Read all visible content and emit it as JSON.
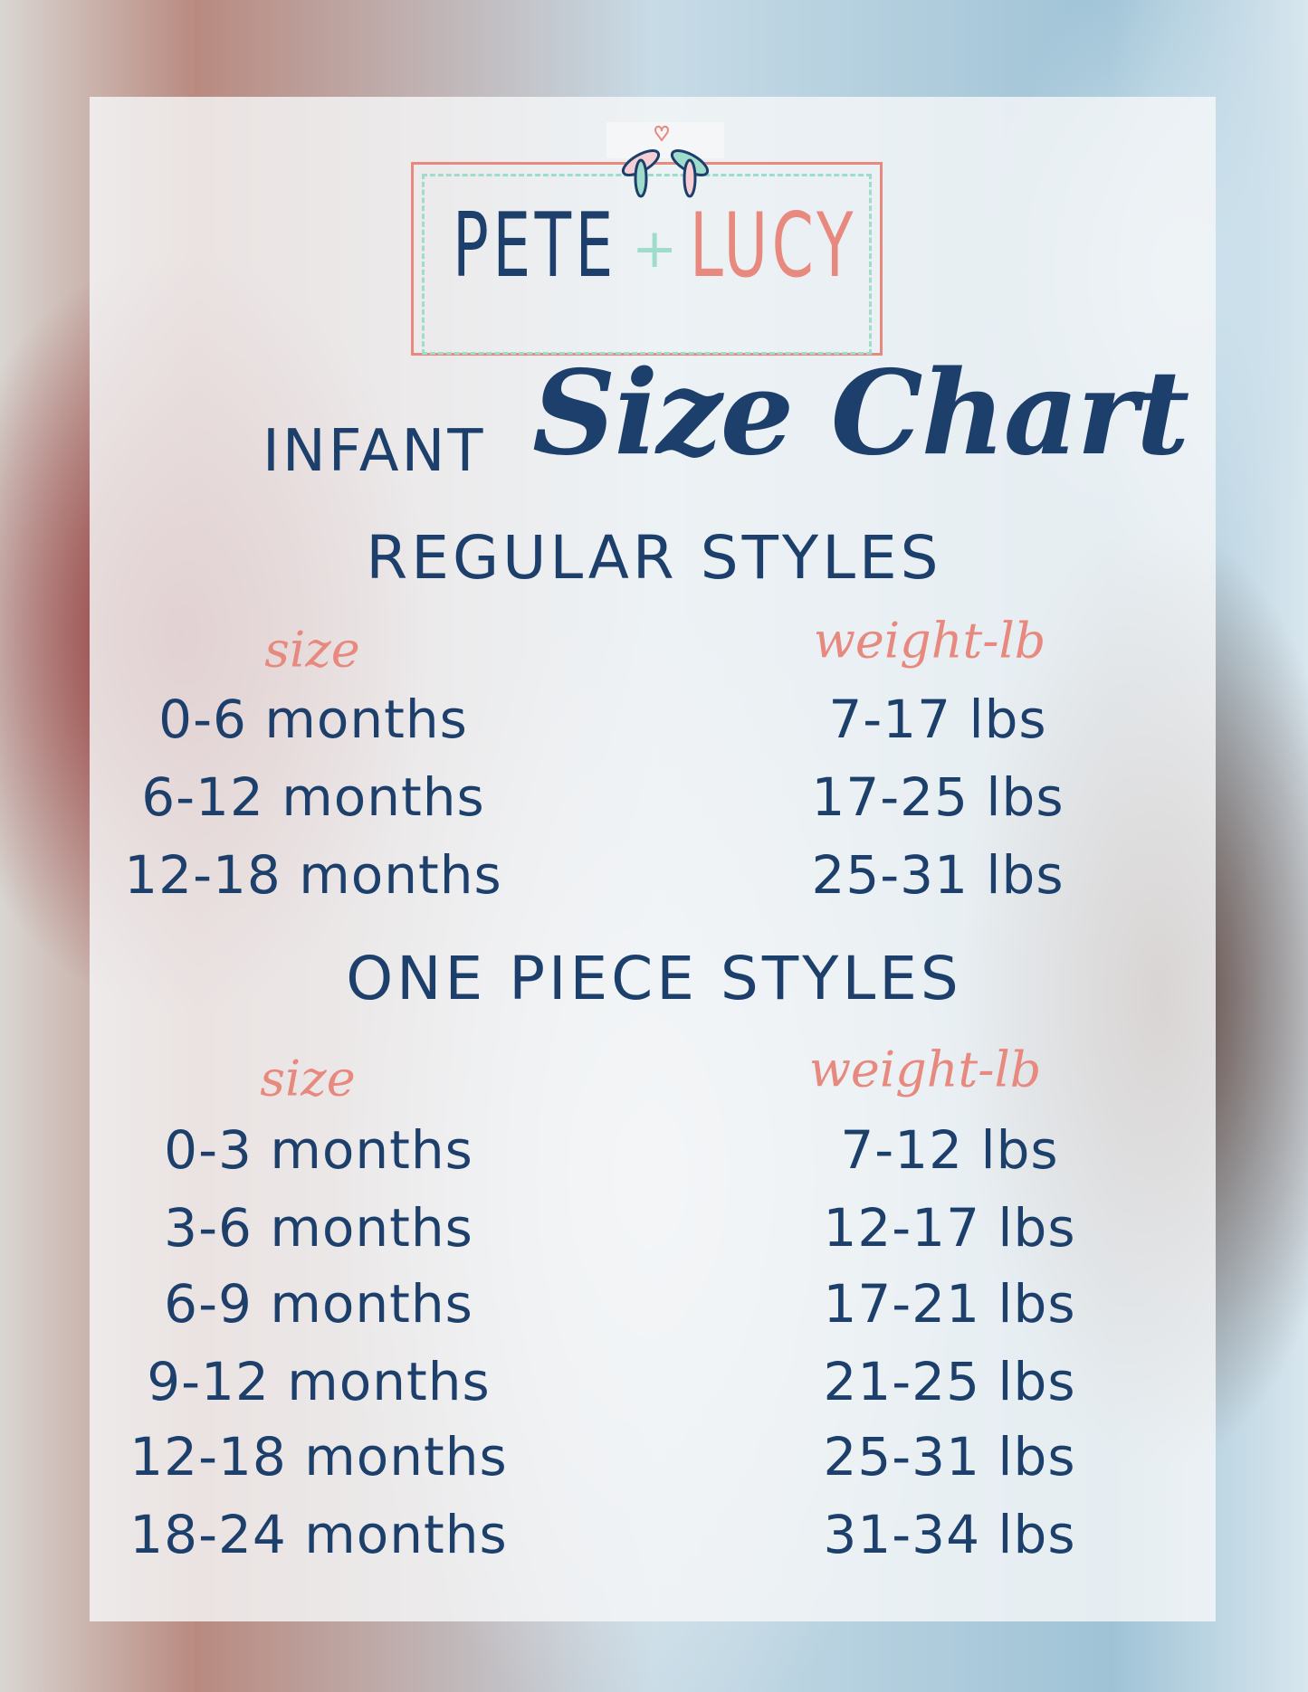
{
  "logo": {
    "left": "PETE",
    "plus": "+",
    "right": "LUCY"
  },
  "title": {
    "prefix": "INFANT",
    "main": "Size Chart"
  },
  "colors": {
    "navy": "#1d3f6b",
    "coral": "#e8897f",
    "mint": "#9fdccb"
  },
  "regular": {
    "heading": "REGULAR STYLES",
    "size_header": "size",
    "weight_header": "weight-lb",
    "rows": [
      {
        "size": "0-6 months",
        "weight": "7-17 lbs"
      },
      {
        "size": "6-12 months",
        "weight": "17-25 lbs"
      },
      {
        "size": "12-18 months",
        "weight": "25-31 lbs"
      }
    ]
  },
  "one_piece": {
    "heading": "ONE PIECE STYLES",
    "size_header": "size",
    "weight_header": "weight-lb",
    "rows": [
      {
        "size": "0-3 months",
        "weight": "7-12 lbs"
      },
      {
        "size": "3-6 months",
        "weight": "12-17 lbs"
      },
      {
        "size": "6-9 months",
        "weight": "17-21 lbs"
      },
      {
        "size": "9-12 months",
        "weight": "21-25 lbs"
      },
      {
        "size": "12-18 months",
        "weight": "25-31 lbs"
      },
      {
        "size": "18-24 months",
        "weight": "31-34 lbs"
      }
    ]
  }
}
